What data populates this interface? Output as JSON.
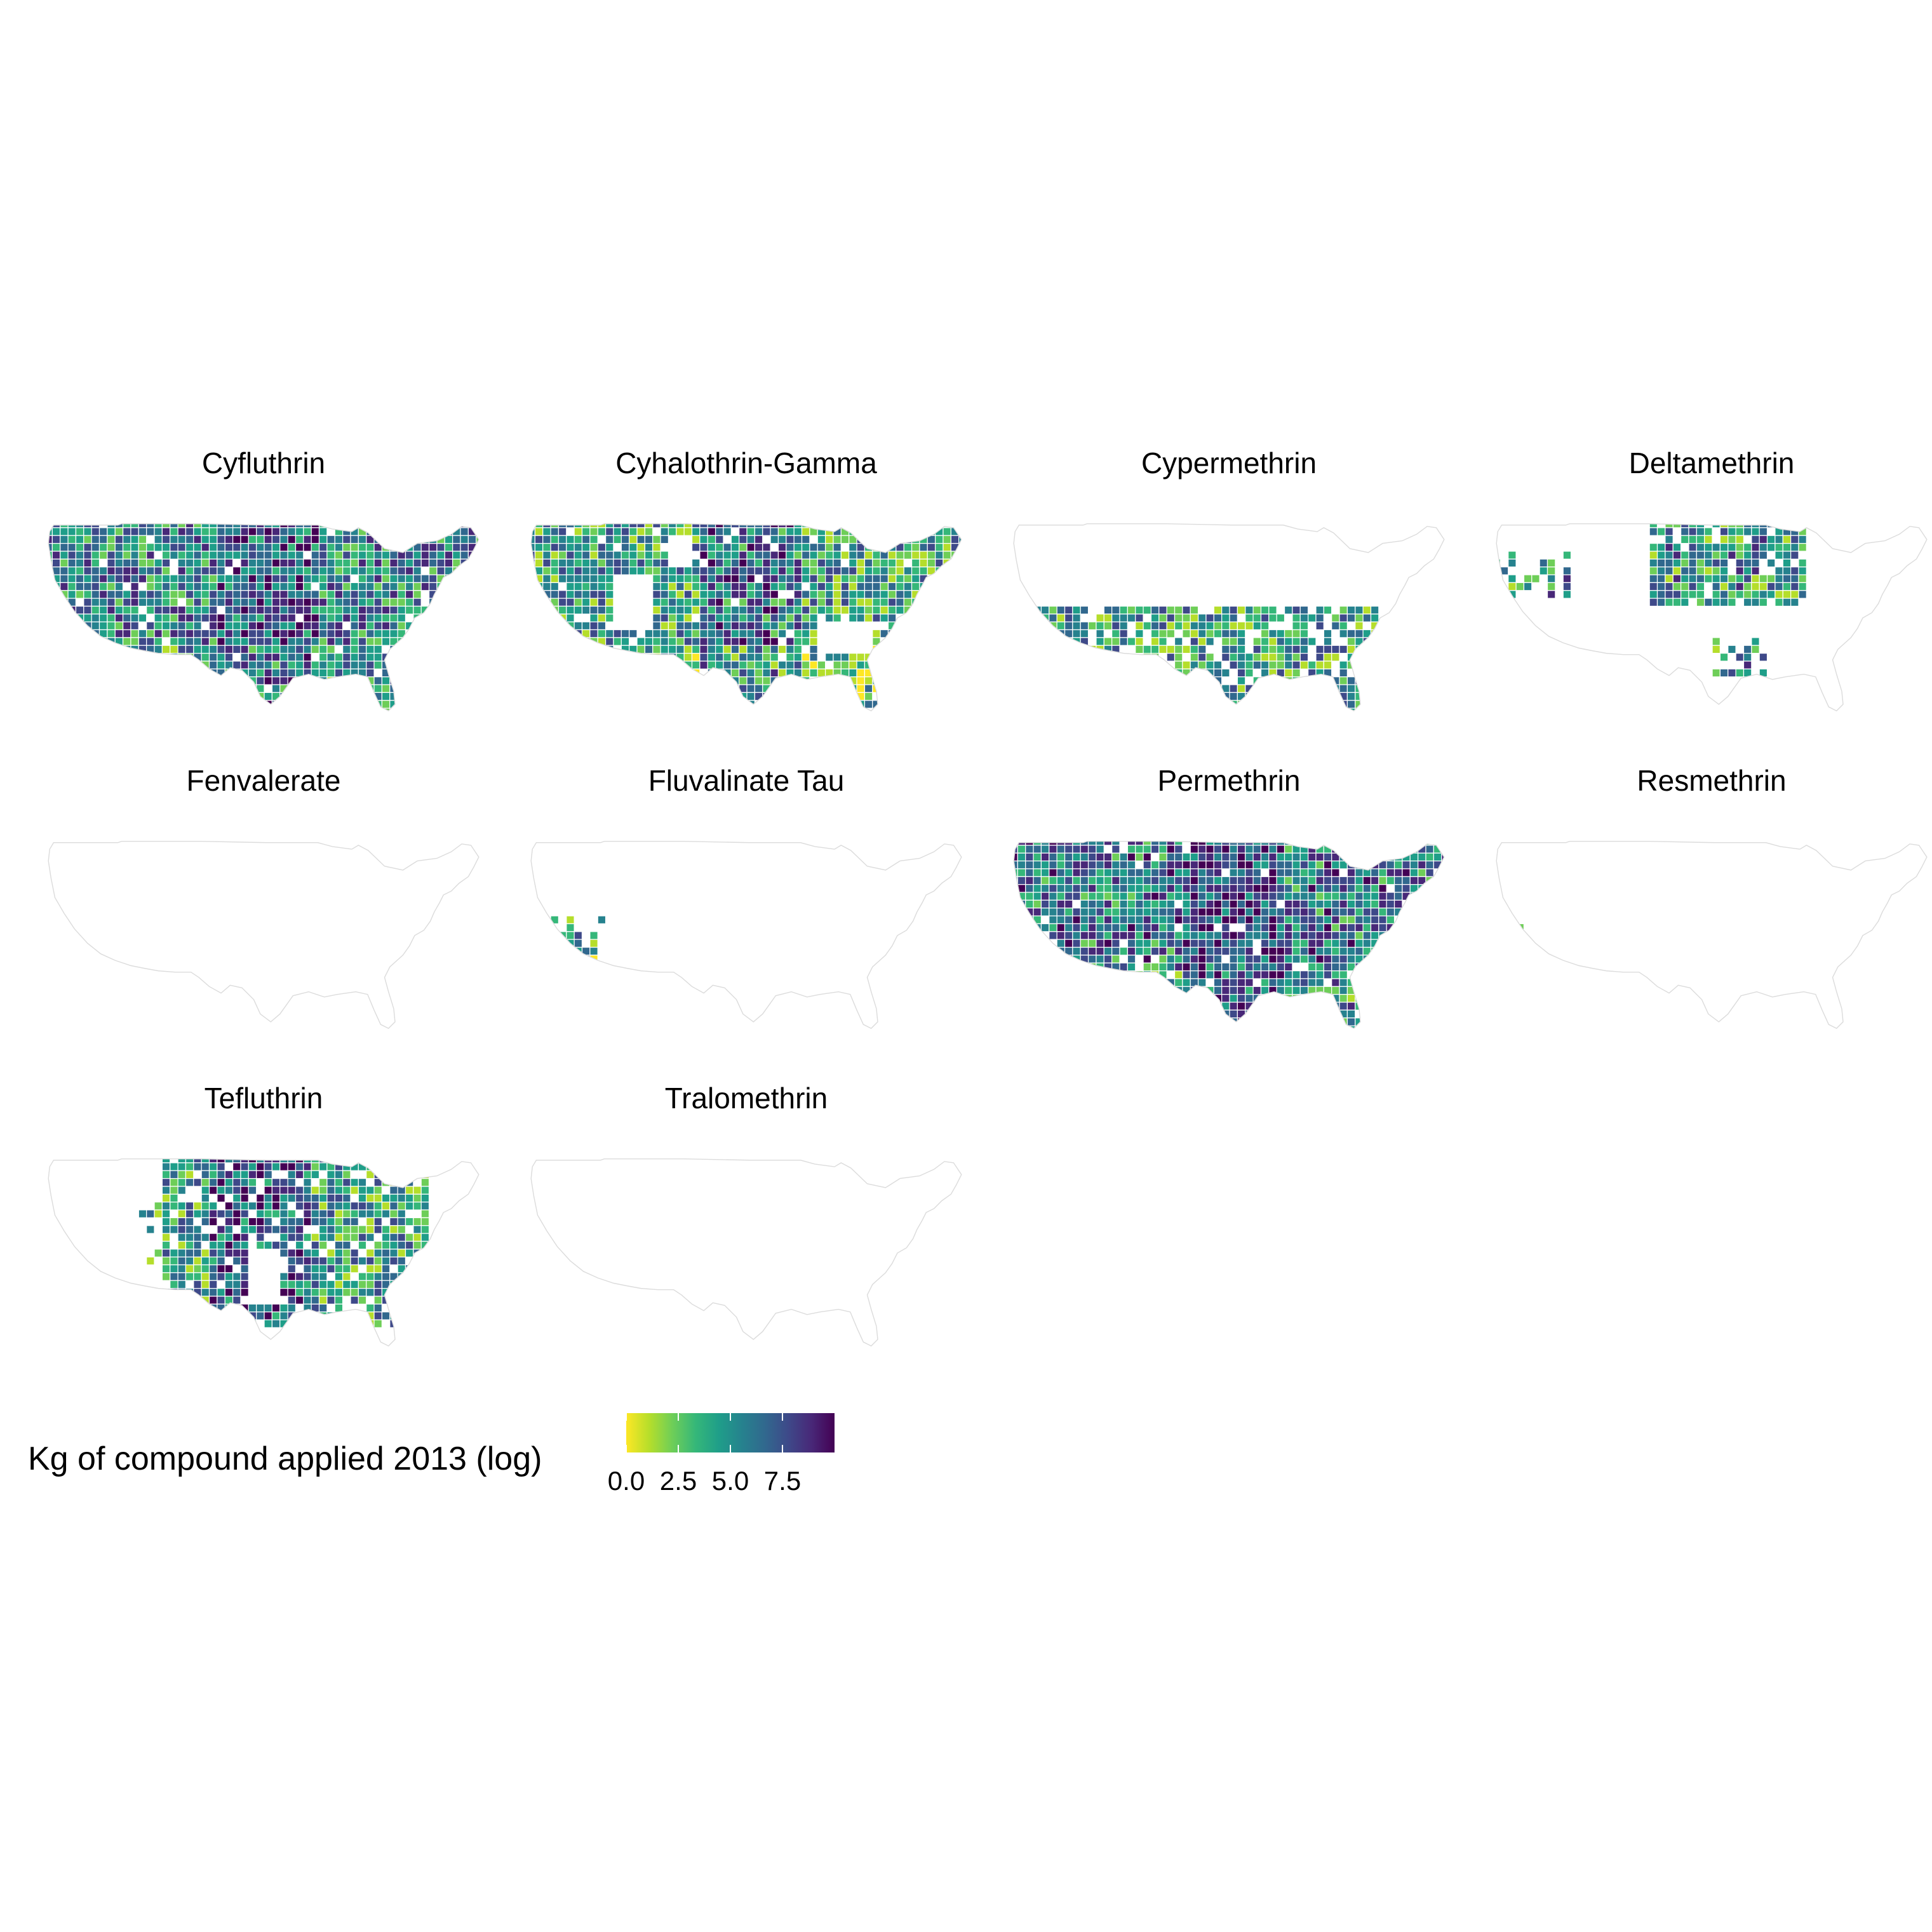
{
  "facets": [
    {
      "name": "Cyfluthrin",
      "coverage": "full",
      "intensity": 0.55
    },
    {
      "name": "Cyhalothrin-Gamma",
      "coverage": "full-gaps",
      "intensity": 0.45
    },
    {
      "name": "Cypermethrin",
      "coverage": "south",
      "intensity": 0.45
    },
    {
      "name": "Deltamethrin",
      "coverage": "northcentral",
      "intensity": 0.5
    },
    {
      "name": "Fenvalerate",
      "coverage": "none",
      "intensity": 0
    },
    {
      "name": "Fluvalinate Tau",
      "coverage": "california",
      "intensity": 0.4
    },
    {
      "name": "Permethrin",
      "coverage": "full",
      "intensity": 0.6
    },
    {
      "name": "Resmethrin",
      "coverage": "dot",
      "intensity": 0.1
    },
    {
      "name": "Tefluthrin",
      "coverage": "east",
      "intensity": 0.5
    },
    {
      "name": "Tralomethrin",
      "coverage": "none",
      "intensity": 0
    }
  ],
  "legend": {
    "title": "Kg of compound applied 2013 (log)",
    "ticks": [
      "0.0",
      "2.5",
      "5.0",
      "7.5"
    ],
    "tick_values": [
      0,
      2.5,
      5,
      7.5
    ],
    "range": [
      0,
      10
    ],
    "colors": [
      "#fde725",
      "#b5de2b",
      "#6ece58",
      "#35b779",
      "#1f9e89",
      "#26828e",
      "#31688e",
      "#3e4989",
      "#482878",
      "#440154"
    ]
  }
}
